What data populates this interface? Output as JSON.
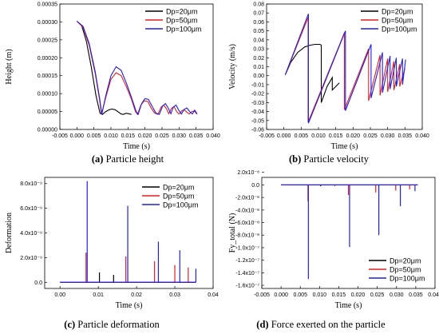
{
  "figure": {
    "panels_order": [
      "a",
      "b",
      "c",
      "d"
    ]
  },
  "chart_data": [
    {
      "id": "a",
      "type": "line",
      "caption_letter": "(a)",
      "caption_text": " Particle height",
      "xlabel": "Time (s)",
      "ylabel": "Height (m)",
      "xlim": [
        -0.005,
        0.04
      ],
      "ylim": [
        0.0,
        0.00035
      ],
      "x_ticks": [
        "-0.005",
        "0.000",
        "0.005",
        "0.010",
        "0.015",
        "0.020",
        "0.025",
        "0.030",
        "0.035",
        "0.040"
      ],
      "y_ticks": [
        "0.00000",
        "0.00005",
        "0.00010",
        "0.00015",
        "0.00020",
        "0.00025",
        "0.00030",
        "0.00035"
      ],
      "legend_position": "top-right",
      "series": [
        {
          "name": "Dp=20μm",
          "color": "#000000",
          "x": [
            0.0,
            0.0014,
            0.0028,
            0.0042,
            0.0056,
            0.0068,
            0.0075,
            0.0085,
            0.0095,
            0.0103,
            0.0112,
            0.012,
            0.013,
            0.0137,
            0.014,
            0.0146,
            0.0152,
            0.016
          ],
          "y": [
            0.000302,
            0.00029,
            0.000245,
            0.000175,
            9.5e-05,
            4.5e-05,
            4.2e-05,
            5e-05,
            5.5e-05,
            5.7e-05,
            5.5e-05,
            5e-05,
            4.3e-05,
            4.2e-05,
            4.4e-05,
            4.5e-05,
            4.4e-05,
            4.2e-05
          ]
        },
        {
          "name": "Dp=50μm",
          "color": "#e11f1f",
          "x": [
            0.0,
            0.0018,
            0.0036,
            0.0054,
            0.0068,
            0.0072,
            0.0085,
            0.01,
            0.0115,
            0.013,
            0.0145,
            0.016,
            0.0172,
            0.0178,
            0.0188,
            0.0198,
            0.0208,
            0.0218,
            0.0228,
            0.0238,
            0.0247,
            0.0255,
            0.0263,
            0.027,
            0.0277,
            0.0285,
            0.0293,
            0.03,
            0.0308,
            0.0315,
            0.0323,
            0.033,
            0.0338,
            0.0345,
            0.0352
          ],
          "y": [
            0.000302,
            0.000285,
            0.000235,
            0.000155,
            7.5e-05,
            4.2e-05,
            9e-05,
            0.00014,
            0.000158,
            0.00015,
            0.00012,
            8.5e-05,
            5e-05,
            4.2e-05,
            6.8e-05,
            8e-05,
            7.8e-05,
            6e-05,
            4.6e-05,
            4.2e-05,
            6.2e-05,
            6.8e-05,
            5.8e-05,
            4.4e-05,
            5.8e-05,
            6.4e-05,
            5e-05,
            4.3e-05,
            5.2e-05,
            5.5e-05,
            4.8e-05,
            4.3e-05,
            5e-05,
            5.2e-05,
            4.3e-05
          ]
        },
        {
          "name": "Dp=100μm",
          "color": "#1f1fe6",
          "x": [
            0.0,
            0.0018,
            0.0036,
            0.0054,
            0.0068,
            0.0073,
            0.0085,
            0.01,
            0.0115,
            0.013,
            0.0145,
            0.016,
            0.0174,
            0.018,
            0.019,
            0.02,
            0.021,
            0.022,
            0.0232,
            0.0242,
            0.0252,
            0.026,
            0.0268,
            0.0276,
            0.0283,
            0.0291,
            0.0299,
            0.0307,
            0.0315,
            0.0323,
            0.0331,
            0.0339,
            0.0346,
            0.0353
          ],
          "y": [
            0.000302,
            0.000288,
            0.00024,
            0.00016,
            8e-05,
            4.2e-05,
            9.5e-05,
            0.00015,
            0.000175,
            0.000165,
            0.00013,
            9e-05,
            5e-05,
            4.2e-05,
            7.2e-05,
            8.6e-05,
            8.4e-05,
            6.6e-05,
            4.6e-05,
            4.2e-05,
            6.6e-05,
            7.2e-05,
            6e-05,
            4.4e-05,
            6.2e-05,
            6.8e-05,
            5.4e-05,
            4.3e-05,
            5.6e-05,
            6e-05,
            5e-05,
            4.3e-05,
            5.4e-05,
            4.3e-05
          ]
        }
      ]
    },
    {
      "id": "b",
      "type": "line",
      "caption_letter": "(b)",
      "caption_text": " Particle velocity",
      "xlabel": "Time (s)",
      "ylabel": "Velocity (m/s)",
      "xlim": [
        -0.005,
        0.04
      ],
      "ylim": [
        -0.06,
        0.08
      ],
      "x_ticks": [
        "-0.005",
        "0.000",
        "0.005",
        "0.010",
        "0.015",
        "0.020",
        "0.025",
        "0.030",
        "0.035",
        "0.040"
      ],
      "y_ticks": [
        "-0.06",
        "-0.05",
        "-0.04",
        "-0.03",
        "-0.02",
        "-0.01",
        "0.00",
        "0.01",
        "0.02",
        "0.03",
        "0.04",
        "0.05",
        "0.06",
        "0.07",
        "0.08"
      ],
      "legend_position": "top-right",
      "series": [
        {
          "name": "Dp=20μm",
          "color": "#000000",
          "x": [
            0.0004,
            0.002,
            0.004,
            0.006,
            0.0075,
            0.009,
            0.0105,
            0.0108,
            0.0108,
            0.0125,
            0.014,
            0.014,
            0.015,
            0.016
          ],
          "y": [
            0.001,
            0.015,
            0.026,
            0.032,
            0.034,
            0.035,
            0.035,
            0.034,
            -0.03,
            -0.012,
            -0.002,
            -0.016,
            -0.012,
            -0.008
          ]
        },
        {
          "name": "Dp=50μm",
          "color": "#e11f1f",
          "x": [
            0.0004,
            0.007,
            0.007,
            0.0175,
            0.0175,
            0.0245,
            0.0245,
            0.0278,
            0.0278,
            0.03,
            0.03,
            0.0318,
            0.0318,
            0.0335,
            0.0335,
            0.035
          ],
          "y": [
            0.001,
            0.065,
            -0.052,
            0.048,
            -0.038,
            0.03,
            -0.028,
            0.023,
            -0.022,
            0.019,
            -0.018,
            0.016,
            -0.016,
            0.013,
            -0.012,
            0.008
          ]
        },
        {
          "name": "Dp=100μm",
          "color": "#1f1fe6",
          "x": [
            0.0004,
            0.0071,
            0.0071,
            0.0178,
            0.0178,
            0.0252,
            0.0252,
            0.0285,
            0.0285,
            0.0307,
            0.0307,
            0.0325,
            0.0325,
            0.0343,
            0.0343,
            0.0352
          ],
          "y": [
            0.001,
            0.069,
            -0.053,
            0.05,
            -0.039,
            0.035,
            -0.025,
            0.026,
            -0.019,
            0.022,
            -0.015,
            0.02,
            -0.012,
            0.019,
            -0.01,
            0.018
          ]
        }
      ]
    },
    {
      "id": "c",
      "type": "line",
      "caption_letter": "(c)",
      "caption_text": " Particle deformation",
      "xlabel": "Time (s)",
      "ylabel": "Deformation",
      "xlim": [
        -0.004,
        0.04
      ],
      "ylim": [
        -5e-10,
        8.5e-09
      ],
      "x_ticks": [
        "0.00",
        "0.01",
        "0.02",
        "0.03",
        "0.04"
      ],
      "x_tick_values": [
        0.0,
        0.01,
        0.02,
        0.03,
        0.04
      ],
      "y_ticks": [
        "0.0",
        "2.0x10⁻⁹",
        "4.0x10⁻⁹",
        "6.0x10⁻⁹",
        "8.0x10⁻⁹"
      ],
      "y_tick_values": [
        0.0,
        2e-09,
        4e-09,
        6e-09,
        8e-09
      ],
      "legend_position": "top-right",
      "series": [
        {
          "name": "Dp=20μm",
          "color": "#000000",
          "spikes_x": [
            0.0103,
            0.014
          ],
          "spikes_y": [
            8e-10,
            6e-10
          ]
        },
        {
          "name": "Dp=50μm",
          "color": "#e11f1f",
          "spikes_x": [
            0.0068,
            0.0172,
            0.0247,
            0.03,
            0.0335
          ],
          "spikes_y": [
            2.4e-09,
            2.1e-09,
            1.7e-09,
            1.4e-09,
            1.2e-09
          ]
        },
        {
          "name": "Dp=100μm",
          "color": "#1f1fe6",
          "spikes_x": [
            0.0071,
            0.0177,
            0.0257,
            0.0313,
            0.0355
          ],
          "spikes_y": [
            8.2e-09,
            6.2e-09,
            3.3e-09,
            2.6e-09,
            1.1e-09
          ]
        }
      ]
    },
    {
      "id": "d",
      "type": "line",
      "caption_letter": "(d)",
      "caption_text": " Force exerted on the particle",
      "xlabel": "Time (s)",
      "ylabel": "Fy_total (N)",
      "xlim": [
        -0.005,
        0.04
      ],
      "ylim": [
        -1.65e-07,
        1.2e-08
      ],
      "x_ticks": [
        "-0.005",
        "0.000",
        "0.005",
        "0.010",
        "0.015",
        "0.020",
        "0.025",
        "0.030",
        "0.035",
        "0.040"
      ],
      "y_ticks": [
        "-1.6x10⁻⁷",
        "-1.4x10⁻⁷",
        "-1.2x10⁻⁷",
        "-1.0x10⁻⁷",
        "-8.0x10⁻⁸",
        "-6.0x10⁻⁸",
        "-4.0x10⁻⁸",
        "-2.0x10⁻⁸",
        "0.0",
        "2.0x10⁻⁸"
      ],
      "y_tick_values": [
        -1.6e-07,
        -1.4e-07,
        -1.2e-07,
        -1e-07,
        -8e-08,
        -6e-08,
        -4e-08,
        -2e-08,
        0.0,
        2e-08
      ],
      "legend_position": "bottom-right",
      "series": [
        {
          "name": "Dp=20μm",
          "color": "#000000",
          "spikes_x": [
            0.0103,
            0.014
          ],
          "spikes_y": [
            -2e-09,
            -1.5e-09
          ]
        },
        {
          "name": "Dp=50μm",
          "color": "#e11f1f",
          "spikes_x": [
            0.007,
            0.0175,
            0.0246,
            0.0298,
            0.0334
          ],
          "spikes_y": [
            -2.6e-08,
            -1.6e-08,
            -1.2e-08,
            -9e-09,
            -7e-09
          ]
        },
        {
          "name": "Dp=100μm",
          "color": "#1f1fe6",
          "spikes_x": [
            0.0071,
            0.0178,
            0.0254,
            0.031,
            0.0348
          ],
          "spikes_y": [
            -1.5e-07,
            -9.9e-08,
            -8e-08,
            -3.4e-08,
            -1e-08
          ]
        }
      ]
    }
  ]
}
